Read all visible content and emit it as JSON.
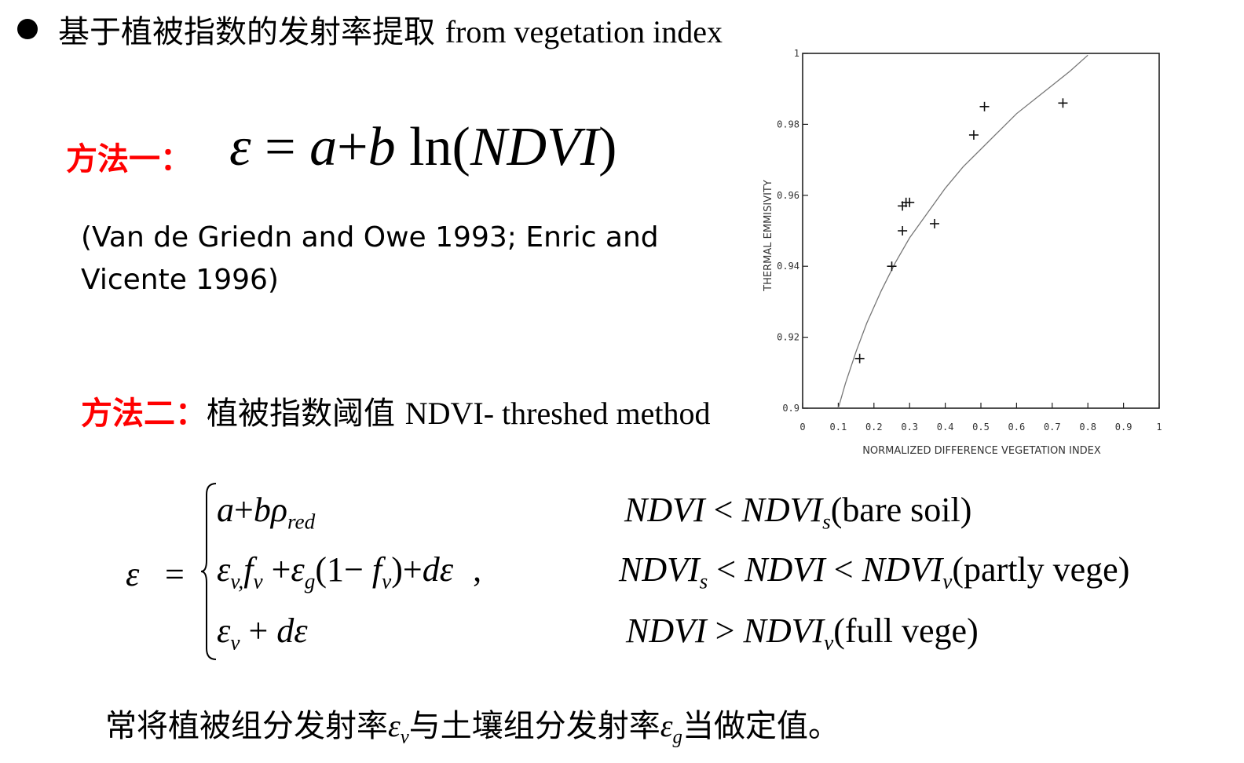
{
  "title": {
    "zh": "基于植被指数的发射率提取",
    "en": "from vegetation index"
  },
  "method1": {
    "label": "方法一：",
    "equation": {
      "lhs": "ε",
      "eq": "=",
      "a": "a",
      "plus": "+",
      "b": "b",
      "ln": "ln",
      "lparen": "(",
      "arg": "NDVI",
      "rparen": ")"
    },
    "citation": "(Van de Griedn and Owe 1993; Enric and Vicente 1996)"
  },
  "method2": {
    "label": "方法二：",
    "zh": "植被指数阈值",
    "en": "NDVI- threshed method"
  },
  "piecewise": {
    "lhs": "ε",
    "eq": "=",
    "case1": {
      "a": "a",
      "plus": "+",
      "b": "b",
      "rho": "ρ",
      "rho_sub": "red"
    },
    "case2": {
      "ev": "ε",
      "ev_sub": "v,",
      "fv": "f",
      "fv_sub": "v",
      "plus1": "+",
      "eg": "ε",
      "eg_sub": "g",
      "paren_open": "(1",
      "minus": "−",
      "f2": "f",
      "f2_sub": "v",
      "paren_close": ")",
      "plus2": "+",
      "de": "dε",
      "comma": ","
    },
    "case3": {
      "ev": "ε",
      "ev_sub": "v",
      "plus": "+",
      "de": "dε"
    },
    "cond1": {
      "ndvi": "NDVI",
      "op": "<",
      "ndvi2": "NDVI",
      "sub": "s",
      "note": "(bare soil)"
    },
    "cond2": {
      "ndvi1": "NDVI",
      "sub1": "s",
      "op1": "<",
      "ndvi": "NDVI",
      "op2": "<",
      "ndvi2": "NDVI",
      "sub2": "v",
      "note": "(partly vege)"
    },
    "cond3": {
      "ndvi": "NDVI",
      "op": ">",
      "ndvi2": "NDVI",
      "sub": "v",
      "note": "(full vege)"
    }
  },
  "note": {
    "part1": "常将植被组分发射率",
    "ev": "ε",
    "ev_sub": "v",
    "part2": "与土壤组分发射率",
    "eg": "ε",
    "eg_sub": "g",
    "part3": "当做定值。"
  },
  "chart_data": {
    "type": "scatter",
    "title": "",
    "xlabel": "NORMALIZED DIFFERENCE VEGETATION INDEX",
    "ylabel": "THERMAL EMMISIVITY",
    "xlim": [
      0,
      1
    ],
    "ylim": [
      0.9,
      1
    ],
    "x_ticks": [
      "0",
      "0.1",
      "0.2",
      "0.3",
      "0.4",
      "0.5",
      "0.6",
      "0.7",
      "0.8",
      "0.9",
      "1"
    ],
    "y_ticks": [
      "0.9",
      "0.92",
      "0.94",
      "0.96",
      "0.98",
      "1"
    ],
    "grid": false,
    "points": [
      {
        "x": 0.16,
        "y": 0.914
      },
      {
        "x": 0.25,
        "y": 0.94
      },
      {
        "x": 0.28,
        "y": 0.95
      },
      {
        "x": 0.28,
        "y": 0.957
      },
      {
        "x": 0.29,
        "y": 0.958
      },
      {
        "x": 0.3,
        "y": 0.958
      },
      {
        "x": 0.37,
        "y": 0.952
      },
      {
        "x": 0.48,
        "y": 0.977
      },
      {
        "x": 0.51,
        "y": 0.985
      },
      {
        "x": 0.73,
        "y": 0.986
      }
    ],
    "fit_curve": {
      "x": [
        0.1,
        0.12,
        0.15,
        0.18,
        0.22,
        0.26,
        0.3,
        0.35,
        0.4,
        0.45,
        0.5,
        0.55,
        0.6,
        0.65,
        0.7,
        0.75,
        0.8
      ],
      "y": [
        0.9,
        0.907,
        0.916,
        0.924,
        0.933,
        0.941,
        0.948,
        0.955,
        0.962,
        0.968,
        0.973,
        0.978,
        0.983,
        0.987,
        0.991,
        0.995,
        0.9995
      ]
    }
  }
}
